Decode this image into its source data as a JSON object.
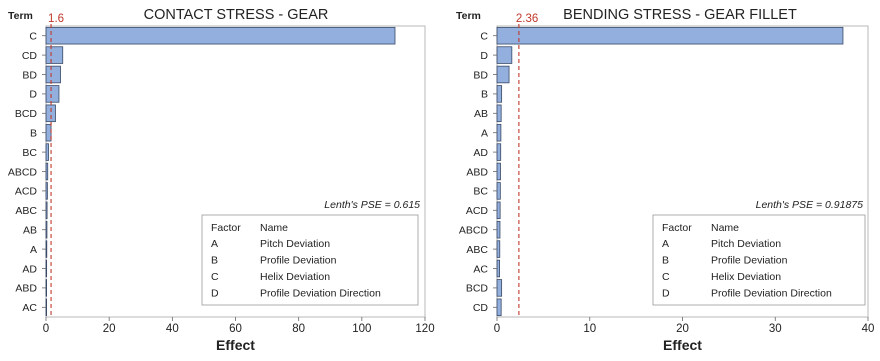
{
  "chart_data": [
    {
      "type": "bar",
      "orientation": "horizontal",
      "title": "CONTACT STRESS - GEAR",
      "xlabel": "Effect",
      "ylabel": "Term",
      "xlim": [
        0,
        120
      ],
      "xticks": [
        0,
        20,
        40,
        60,
        80,
        100,
        120
      ],
      "categories": [
        "C",
        "CD",
        "BD",
        "D",
        "BCD",
        "B",
        "BC",
        "ABCD",
        "ACD",
        "ABC",
        "AB",
        "A",
        "AD",
        "ABD",
        "AC"
      ],
      "values": [
        110.5,
        5.3,
        4.6,
        4.1,
        3.0,
        1.6,
        0.8,
        0.55,
        0.45,
        0.35,
        0.3,
        0.25,
        0.2,
        0.15,
        0.1
      ],
      "reference_line": {
        "value": 1.6,
        "label": "1.6",
        "color": "#c0392b"
      },
      "annotation": "Lenth's PSE = 0.615",
      "legend": {
        "header": [
          "Factor",
          "Name"
        ],
        "rows": [
          [
            "A",
            "Pitch Deviation"
          ],
          [
            "B",
            "Profile Deviation"
          ],
          [
            "C",
            "Helix Deviation"
          ],
          [
            "D",
            "Profile Deviation Direction"
          ]
        ]
      },
      "bar_color": "#92afde",
      "grid": false
    },
    {
      "type": "bar",
      "orientation": "horizontal",
      "title": "BENDING STRESS - GEAR FILLET",
      "xlabel": "Effect",
      "ylabel": "Term",
      "xlim": [
        0,
        40
      ],
      "xticks": [
        0,
        10,
        20,
        30,
        40
      ],
      "categories": [
        "C",
        "D",
        "BD",
        "B",
        "AB",
        "A",
        "AD",
        "ABD",
        "BC",
        "ACD",
        "ABCD",
        "ABC",
        "AC",
        "BCD",
        "CD"
      ],
      "values": [
        37.3,
        1.6,
        1.3,
        0.5,
        0.45,
        0.42,
        0.4,
        0.38,
        0.36,
        0.34,
        0.32,
        0.3,
        0.28,
        0.5,
        0.45
      ],
      "reference_line": {
        "value": 2.36,
        "label": "2.36",
        "color": "#c0392b"
      },
      "annotation": "Lenth's PSE = 0.91875",
      "legend": {
        "header": [
          "Factor",
          "Name"
        ],
        "rows": [
          [
            "A",
            "Pitch Deviation"
          ],
          [
            "B",
            "Profile Deviation"
          ],
          [
            "C",
            "Helix Deviation"
          ],
          [
            "D",
            "Profile Deviation Direction"
          ]
        ]
      },
      "bar_color": "#92afde",
      "grid": false
    }
  ]
}
